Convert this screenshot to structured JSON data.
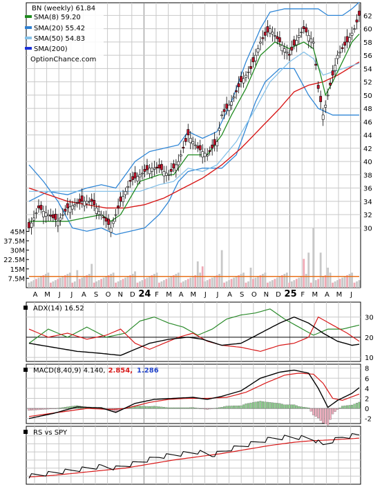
{
  "colors": {
    "sma8": "#1e8a1e",
    "sma20": "#2f7fd0",
    "sma50": "#86c1e8",
    "sma200": "#1a2fd8",
    "sma_red": "#d81818",
    "bollinger": "#2f86d6",
    "yellow": "#e0e000",
    "up": "#ffffff",
    "down": "#c4122a",
    "vol_up": "#c8c8c8",
    "vol_down": "#f0a8b4",
    "vol_avg": "#e8701a",
    "adx": "#000000",
    "pdi": "#2a8a2a",
    "mdi": "#d81818",
    "macd": "#000000",
    "signal": "#d81818",
    "hist": "#8fcf8f",
    "hist_neg": "#f0b0c0",
    "hist_pos_label": "#d81818",
    "hist_label_blue": "#2244cc",
    "grid": "#c8c8c8"
  },
  "legend": {
    "title": "BN (weekly) 61.84",
    "sma8": "SMA(8) 59.20",
    "sma20": "SMA(20) 55.42",
    "sma50": "SMA(50) 54.83",
    "sma200": "SMA(200)",
    "source": "OptionChance.com"
  },
  "panels": {
    "adx_label": "ADX(14) 16.52",
    "macd_label": "MACD(8,40,9) 4.140,",
    "macd_val2": "2.854,",
    "macd_val3": "1.286",
    "rs_label": "RS vs SPY"
  },
  "chart_data": {
    "type": "candlestick",
    "x_labels": [
      "A",
      "M",
      "J",
      "J",
      "A",
      "S",
      "O",
      "N",
      "D",
      "24",
      "F",
      "M",
      "A",
      "M",
      "J",
      "J",
      "A",
      "S",
      "O",
      "N",
      "D",
      "25",
      "F",
      "M",
      "A",
      "M",
      "J"
    ],
    "price_ticks": [
      "62",
      "60",
      "58",
      "56",
      "54",
      "52",
      "50",
      "48",
      "46",
      "44",
      "42",
      "40",
      "38",
      "36",
      "34",
      "32",
      "30"
    ],
    "volume_ticks": [
      "45M",
      "37.5M",
      "30M",
      "22.5M",
      "15M",
      "7.5M"
    ],
    "adx_ticks": [
      "30",
      "20",
      "10"
    ],
    "macd_ticks": [
      "8",
      "6",
      "4",
      "2",
      "0",
      "-2"
    ],
    "close_waypoints": [
      [
        0,
        30
      ],
      [
        4,
        33
      ],
      [
        8,
        32
      ],
      [
        12,
        31
      ],
      [
        16,
        33
      ],
      [
        22,
        34
      ],
      [
        26,
        34
      ],
      [
        30,
        32
      ],
      [
        34,
        30
      ],
      [
        38,
        34
      ],
      [
        42,
        37
      ],
      [
        46,
        38
      ],
      [
        50,
        39
      ],
      [
        54,
        39
      ],
      [
        58,
        38
      ],
      [
        62,
        40
      ],
      [
        66,
        44
      ],
      [
        70,
        42
      ],
      [
        74,
        41
      ],
      [
        78,
        43
      ],
      [
        80,
        47
      ],
      [
        84,
        49
      ],
      [
        88,
        52
      ],
      [
        92,
        54
      ],
      [
        96,
        58
      ],
      [
        100,
        60
      ],
      [
        104,
        58
      ],
      [
        108,
        56
      ],
      [
        112,
        59
      ],
      [
        114,
        60
      ],
      [
        118,
        58
      ],
      [
        120,
        51
      ],
      [
        122,
        47
      ],
      [
        124,
        50
      ],
      [
        128,
        56
      ],
      [
        132,
        58
      ],
      [
        135,
        60
      ],
      [
        137,
        62
      ]
    ],
    "sma8_waypoints": [
      [
        16,
        31
      ],
      [
        30,
        32
      ],
      [
        34,
        31
      ],
      [
        38,
        32
      ],
      [
        46,
        37
      ],
      [
        54,
        38
      ],
      [
        60,
        38
      ],
      [
        66,
        41
      ],
      [
        74,
        41
      ],
      [
        80,
        44
      ],
      [
        84,
        47
      ],
      [
        90,
        51
      ],
      [
        96,
        56
      ],
      [
        102,
        58
      ],
      [
        108,
        57
      ],
      [
        114,
        58
      ],
      [
        118,
        57
      ],
      [
        121,
        53
      ],
      [
        123,
        50
      ],
      [
        126,
        52
      ],
      [
        130,
        55
      ],
      [
        134,
        58
      ],
      [
        137,
        59.2
      ]
    ],
    "sma50_waypoints": [
      [
        46,
        35.5
      ],
      [
        54,
        36.5
      ],
      [
        60,
        37
      ],
      [
        66,
        39
      ],
      [
        72,
        38.5
      ],
      [
        78,
        39.5
      ],
      [
        86,
        43
      ],
      [
        94,
        48
      ],
      [
        100,
        52
      ],
      [
        108,
        55
      ],
      [
        114,
        56.5
      ],
      [
        118,
        55.5
      ],
      [
        122,
        53
      ],
      [
        126,
        53.5
      ],
      [
        132,
        54.2
      ],
      [
        137,
        54.8
      ]
    ],
    "sma200_red_waypoints": [
      [
        0,
        36
      ],
      [
        8,
        35
      ],
      [
        16,
        34
      ],
      [
        24,
        33.5
      ],
      [
        32,
        33
      ],
      [
        40,
        33
      ],
      [
        48,
        33.5
      ],
      [
        56,
        34.5
      ],
      [
        64,
        36
      ],
      [
        72,
        37.5
      ],
      [
        80,
        39.5
      ],
      [
        88,
        42
      ],
      [
        96,
        45
      ],
      [
        104,
        48
      ],
      [
        110,
        50.5
      ],
      [
        116,
        51.5
      ],
      [
        122,
        52
      ],
      [
        128,
        53
      ],
      [
        137,
        55
      ]
    ],
    "bb_upper_waypoints": [
      [
        0,
        34
      ],
      [
        8,
        35.5
      ],
      [
        16,
        35
      ],
      [
        24,
        36
      ],
      [
        30,
        36.5
      ],
      [
        36,
        36
      ],
      [
        44,
        40
      ],
      [
        50,
        41.5
      ],
      [
        56,
        42
      ],
      [
        62,
        42.5
      ],
      [
        66,
        44.5
      ],
      [
        72,
        43.5
      ],
      [
        78,
        44.5
      ],
      [
        84,
        49
      ],
      [
        90,
        55
      ],
      [
        96,
        60
      ],
      [
        100,
        62.5
      ],
      [
        106,
        63
      ],
      [
        112,
        63
      ],
      [
        116,
        63
      ],
      [
        120,
        63
      ],
      [
        124,
        62
      ],
      [
        130,
        62
      ],
      [
        134,
        63
      ],
      [
        137,
        64
      ]
    ],
    "bb_lower_waypoints": [
      [
        0,
        39.5
      ],
      [
        6,
        37
      ],
      [
        12,
        34
      ],
      [
        18,
        30
      ],
      [
        24,
        29.5
      ],
      [
        30,
        30
      ],
      [
        36,
        29
      ],
      [
        42,
        29.5
      ],
      [
        48,
        30
      ],
      [
        54,
        32
      ],
      [
        58,
        34
      ],
      [
        62,
        37
      ],
      [
        66,
        38.5
      ],
      [
        72,
        39
      ],
      [
        80,
        39
      ],
      [
        86,
        41
      ],
      [
        90,
        45
      ],
      [
        94,
        49
      ],
      [
        98,
        52
      ],
      [
        104,
        54
      ],
      [
        110,
        54
      ],
      [
        116,
        50
      ],
      [
        120,
        48
      ],
      [
        126,
        47
      ],
      [
        130,
        47
      ],
      [
        134,
        47
      ],
      [
        137,
        47
      ]
    ],
    "adx_waypoints": [
      [
        0,
        17
      ],
      [
        10,
        15
      ],
      [
        20,
        13
      ],
      [
        30,
        12
      ],
      [
        38,
        11
      ],
      [
        44,
        14
      ],
      [
        50,
        17
      ],
      [
        58,
        19
      ],
      [
        66,
        20
      ],
      [
        72,
        19
      ],
      [
        80,
        16
      ],
      [
        88,
        17
      ],
      [
        96,
        22
      ],
      [
        104,
        27
      ],
      [
        110,
        30
      ],
      [
        116,
        27
      ],
      [
        122,
        22
      ],
      [
        128,
        18
      ],
      [
        134,
        16
      ],
      [
        137,
        16.5
      ]
    ],
    "pdi_waypoints": [
      [
        0,
        17
      ],
      [
        8,
        24
      ],
      [
        16,
        20
      ],
      [
        24,
        25
      ],
      [
        32,
        20
      ],
      [
        40,
        22
      ],
      [
        46,
        28
      ],
      [
        52,
        30
      ],
      [
        58,
        27
      ],
      [
        64,
        25
      ],
      [
        70,
        21
      ],
      [
        76,
        24
      ],
      [
        82,
        29
      ],
      [
        88,
        31
      ],
      [
        94,
        32
      ],
      [
        100,
        34
      ],
      [
        106,
        29
      ],
      [
        112,
        25
      ],
      [
        118,
        21
      ],
      [
        124,
        24
      ],
      [
        130,
        24
      ],
      [
        137,
        26
      ]
    ],
    "mdi_waypoints": [
      [
        0,
        24
      ],
      [
        8,
        20
      ],
      [
        16,
        22
      ],
      [
        24,
        19
      ],
      [
        32,
        21
      ],
      [
        38,
        24
      ],
      [
        44,
        17
      ],
      [
        50,
        14
      ],
      [
        56,
        17
      ],
      [
        62,
        20
      ],
      [
        68,
        22
      ],
      [
        74,
        18
      ],
      [
        80,
        16
      ],
      [
        88,
        15
      ],
      [
        96,
        13
      ],
      [
        104,
        16
      ],
      [
        110,
        17
      ],
      [
        116,
        20
      ],
      [
        120,
        30
      ],
      [
        126,
        26
      ],
      [
        132,
        22
      ],
      [
        137,
        18
      ]
    ],
    "macd_waypoints": [
      [
        0,
        -2
      ],
      [
        10,
        -1
      ],
      [
        20,
        0.3
      ],
      [
        30,
        0.1
      ],
      [
        36,
        -0.8
      ],
      [
        44,
        1
      ],
      [
        52,
        1.8
      ],
      [
        60,
        2
      ],
      [
        68,
        2.2
      ],
      [
        74,
        1.8
      ],
      [
        80,
        2.4
      ],
      [
        88,
        3.5
      ],
      [
        96,
        6
      ],
      [
        104,
        7.2
      ],
      [
        110,
        7.6
      ],
      [
        116,
        7
      ],
      [
        120,
        4
      ],
      [
        124,
        0.2
      ],
      [
        128,
        1.6
      ],
      [
        134,
        3
      ],
      [
        137,
        4.1
      ]
    ],
    "signal_waypoints": [
      [
        0,
        -1.6
      ],
      [
        12,
        -0.8
      ],
      [
        24,
        0
      ],
      [
        34,
        -0.2
      ],
      [
        40,
        0
      ],
      [
        50,
        1.2
      ],
      [
        58,
        1.8
      ],
      [
        66,
        2
      ],
      [
        74,
        2
      ],
      [
        82,
        2.2
      ],
      [
        90,
        3.2
      ],
      [
        98,
        5
      ],
      [
        106,
        6.6
      ],
      [
        112,
        7
      ],
      [
        118,
        6.8
      ],
      [
        122,
        5
      ],
      [
        126,
        2
      ],
      [
        130,
        1.6
      ],
      [
        137,
        2.85
      ]
    ],
    "rs_waypoints": [
      [
        0,
        10
      ],
      [
        10,
        14
      ],
      [
        20,
        18
      ],
      [
        30,
        22
      ],
      [
        36,
        20
      ],
      [
        44,
        26
      ],
      [
        54,
        34
      ],
      [
        62,
        37
      ],
      [
        70,
        40
      ],
      [
        76,
        36
      ],
      [
        84,
        44
      ],
      [
        92,
        50
      ],
      [
        100,
        56
      ],
      [
        106,
        58
      ],
      [
        112,
        58
      ],
      [
        118,
        56
      ],
      [
        122,
        48
      ],
      [
        126,
        54
      ],
      [
        130,
        58
      ],
      [
        134,
        60
      ],
      [
        137,
        61
      ]
    ],
    "rs_sma_waypoints": [
      [
        0,
        9
      ],
      [
        10,
        11
      ],
      [
        20,
        14
      ],
      [
        30,
        17
      ],
      [
        40,
        20
      ],
      [
        50,
        25
      ],
      [
        60,
        30
      ],
      [
        70,
        34
      ],
      [
        80,
        38
      ],
      [
        90,
        43
      ],
      [
        100,
        48
      ],
      [
        110,
        52
      ],
      [
        118,
        54
      ],
      [
        126,
        55
      ],
      [
        137,
        57
      ]
    ],
    "volume_avg": 9,
    "volume_spikes": [
      [
        20,
        14
      ],
      [
        26,
        19
      ],
      [
        44,
        13
      ],
      [
        70,
        21
      ],
      [
        72,
        17
      ],
      [
        80,
        30
      ],
      [
        92,
        16
      ],
      [
        114,
        23
      ],
      [
        116,
        28
      ],
      [
        118,
        48
      ],
      [
        121,
        28
      ],
      [
        124,
        16
      ]
    ],
    "ylim_price": [
      29,
      63.5
    ],
    "ylim_volume": [
      0,
      48
    ],
    "ylim_adx": [
      8,
      36
    ],
    "ylim_macd": [
      -3,
      8.5
    ],
    "ylim_rs": [
      0,
      70
    ]
  }
}
